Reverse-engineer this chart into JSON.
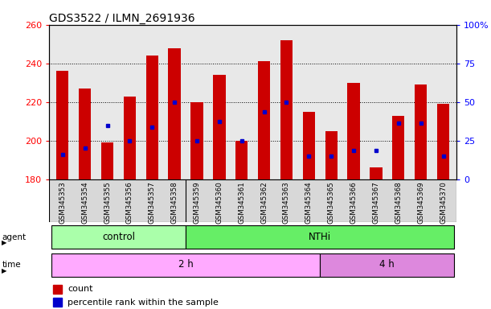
{
  "title": "GDS3522 / ILMN_2691936",
  "samples": [
    "GSM345353",
    "GSM345354",
    "GSM345355",
    "GSM345356",
    "GSM345357",
    "GSM345358",
    "GSM345359",
    "GSM345360",
    "GSM345361",
    "GSM345362",
    "GSM345363",
    "GSM345364",
    "GSM345365",
    "GSM345366",
    "GSM345367",
    "GSM345368",
    "GSM345369",
    "GSM345370"
  ],
  "bar_top": [
    236,
    227,
    199,
    223,
    244,
    248,
    220,
    234,
    200,
    241,
    252,
    215,
    205,
    230,
    186,
    213,
    229,
    219
  ],
  "bar_bottom": 180,
  "blue_dot_value": [
    193,
    196,
    208,
    200,
    207,
    220,
    200,
    210,
    200,
    215,
    220,
    192,
    192,
    195,
    195,
    209,
    209,
    192
  ],
  "ylim_left": [
    180,
    260
  ],
  "ylim_right": [
    0,
    100
  ],
  "yticks_left": [
    180,
    200,
    220,
    240,
    260
  ],
  "yticks_right": [
    0,
    25,
    50,
    75,
    100
  ],
  "ytick_labels_right": [
    "0",
    "25",
    "50",
    "75",
    "100%"
  ],
  "bar_color": "#cc0000",
  "dot_color": "#0000cc",
  "control_color": "#aaffaa",
  "nthi_color": "#66ee66",
  "time2_color": "#ffaaff",
  "time4_color": "#dd88dd",
  "title_fontsize": 10,
  "bar_width": 0.55,
  "plot_bg": "#e8e8e8",
  "fig_bg": "#ffffff"
}
